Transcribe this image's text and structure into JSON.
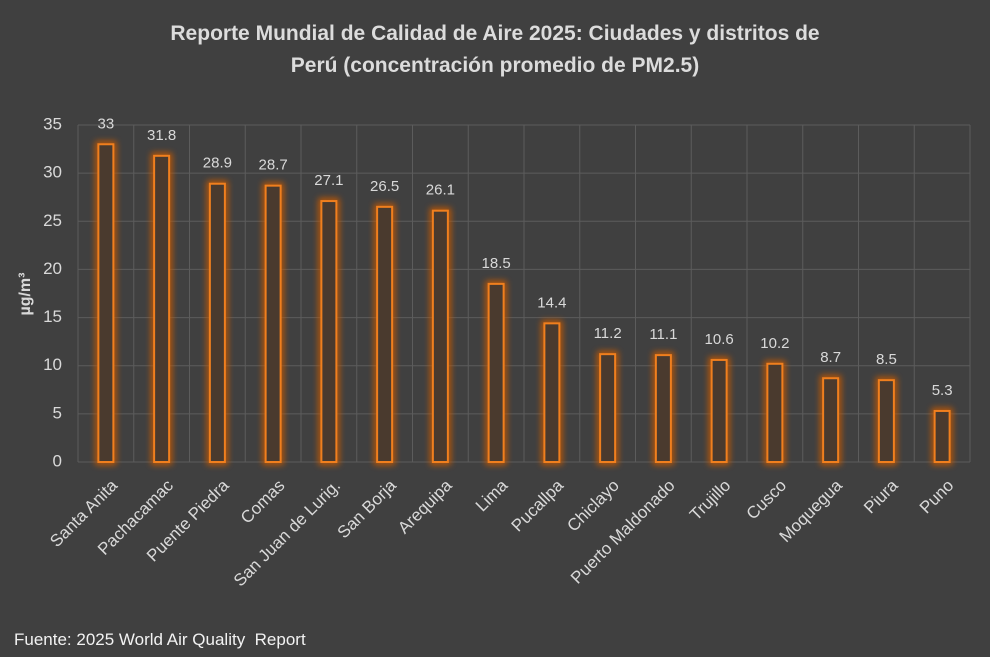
{
  "chart_data": {
    "type": "bar",
    "title_lines": [
      "Reporte Mundial de Calidad de Aire 2025: Ciudades y distritos de",
      "Perú (concentración promedio de PM2.5)"
    ],
    "xlabel": "",
    "ylabel": "µg/m³",
    "ylim": [
      0,
      35
    ],
    "yticks": [
      "0",
      "5",
      "10",
      "15",
      "20",
      "25",
      "30",
      "35"
    ],
    "grid": true,
    "categories": [
      "Santa Anita",
      "Pachacamac",
      "Puente Piedra",
      "Comas",
      "San Juan de Lurig.",
      "San Borja",
      "Arequipa",
      "Lima",
      "Pucallpa",
      "Chiclayo",
      "Puerto Maldonado",
      "Trujillo",
      "Cusco",
      "Moquegua",
      "Piura",
      "Puno"
    ],
    "values": [
      33,
      31.8,
      28.9,
      28.7,
      27.1,
      26.5,
      26.1,
      18.5,
      14.4,
      11.2,
      11.1,
      10.6,
      10.2,
      8.7,
      8.5,
      5.3
    ],
    "value_labels": [
      "33",
      "31.8",
      "28.9",
      "28.7",
      "27.1",
      "26.5",
      "26.1",
      "18.5",
      "14.4",
      "11.2",
      "11.1",
      "10.6",
      "10.2",
      "8.7",
      "8.5",
      "5.3"
    ],
    "colors": {
      "background": "#404040",
      "bar_outline": "#f07f1e",
      "bar_glow": "#c85a00",
      "gridline": "#5c5c5c",
      "text": "#d9d9d9"
    }
  },
  "source_note": "Fuente: 2025 World Air Quality  Report"
}
